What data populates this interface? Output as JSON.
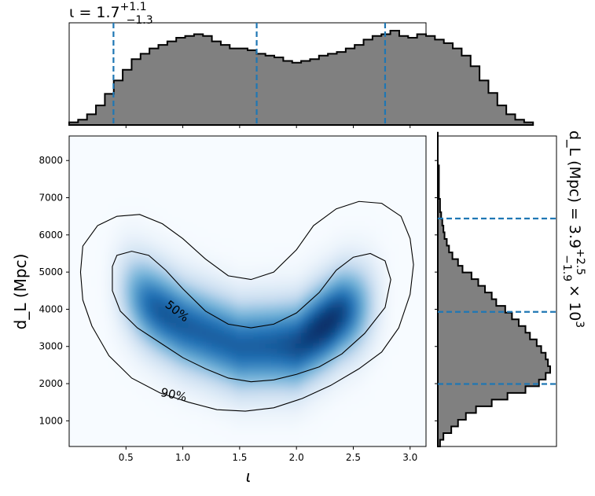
{
  "chart_data": {
    "type": "corner-plot",
    "parameters": [
      "iota",
      "d_L"
    ],
    "top_marginal": {
      "type": "histogram",
      "parameter": "iota",
      "header": {
        "prefix": "ι = 1.7",
        "plus": "+1.1",
        "minus": "−1.3"
      },
      "xlim": [
        0.0,
        3.14
      ],
      "bin_edges_start": 0.0,
      "bin_width": 0.0785,
      "counts": [
        0.03,
        0.06,
        0.12,
        0.22,
        0.35,
        0.5,
        0.62,
        0.74,
        0.8,
        0.86,
        0.9,
        0.94,
        0.98,
        1.0,
        1.02,
        1.0,
        0.94,
        0.9,
        0.86,
        0.86,
        0.84,
        0.8,
        0.78,
        0.76,
        0.72,
        0.7,
        0.72,
        0.74,
        0.78,
        0.8,
        0.82,
        0.86,
        0.9,
        0.96,
        1.0,
        1.02,
        1.06,
        1.0,
        0.98,
        1.02,
        1.0,
        0.96,
        0.92,
        0.86,
        0.78,
        0.66,
        0.5,
        0.36,
        0.22,
        0.12,
        0.06,
        0.03
      ],
      "quantile_lines": [
        0.39,
        1.65,
        2.78
      ]
    },
    "right_marginal": {
      "type": "histogram",
      "parameter": "d_L",
      "orientation": "horizontal",
      "header": {
        "prefix": "d_L (Mpc) = 3.9",
        "plus": "+2.5",
        "minus": "−1.9",
        "suffix": "× 10",
        "exponent": "3"
      },
      "ylim": [
        310,
        8660
      ],
      "bin_edges_start": 310,
      "bin_width": 180,
      "counts": [
        0.02,
        0.05,
        0.12,
        0.18,
        0.25,
        0.34,
        0.48,
        0.62,
        0.78,
        0.9,
        0.96,
        1.0,
        0.98,
        0.96,
        0.92,
        0.88,
        0.82,
        0.78,
        0.72,
        0.66,
        0.6,
        0.52,
        0.48,
        0.42,
        0.36,
        0.3,
        0.22,
        0.18,
        0.13,
        0.1,
        0.08,
        0.06,
        0.05,
        0.04,
        0.03,
        0.02,
        0.02,
        0.01,
        0.01,
        0.01,
        0.01,
        0.01,
        0.0,
        0.0,
        0.0,
        0.0,
        0.0
      ],
      "quantile_lines": [
        1990,
        3930,
        6440
      ]
    },
    "joint": {
      "type": "heatmap",
      "xlim": [
        0.0,
        3.14
      ],
      "ylim": [
        310,
        8660
      ],
      "xlabel_sym": "ι",
      "ylabel": "d_L (Mpc)",
      "xticks": [
        0.5,
        1.0,
        1.5,
        2.0,
        2.5,
        3.0
      ],
      "xtick_labels": [
        "0.5",
        "1.0",
        "1.5",
        "2.0",
        "2.5",
        "3.0"
      ],
      "yticks": [
        1000,
        2000,
        3000,
        4000,
        5000,
        6000,
        7000,
        8000
      ],
      "ytick_labels": [
        "1000",
        "2000",
        "3000",
        "4000",
        "5000",
        "6000",
        "7000",
        "8000"
      ],
      "colormap": [
        "#f7fbff",
        "#c6dbef",
        "#6baed6",
        "#2171b5",
        "#08306b"
      ],
      "contours": [
        {
          "label": "50%",
          "label_at": [
            0.95,
            3950
          ],
          "path": [
            [
              0.38,
              5150
            ],
            [
              0.42,
              5450
            ],
            [
              0.55,
              5560
            ],
            [
              0.7,
              5450
            ],
            [
              0.85,
              5050
            ],
            [
              1.0,
              4550
            ],
            [
              1.2,
              3950
            ],
            [
              1.4,
              3600
            ],
            [
              1.6,
              3500
            ],
            [
              1.8,
              3600
            ],
            [
              2.0,
              3900
            ],
            [
              2.2,
              4450
            ],
            [
              2.35,
              5050
            ],
            [
              2.5,
              5400
            ],
            [
              2.65,
              5500
            ],
            [
              2.78,
              5300
            ],
            [
              2.83,
              4800
            ],
            [
              2.78,
              4050
            ],
            [
              2.6,
              3350
            ],
            [
              2.4,
              2800
            ],
            [
              2.2,
              2450
            ],
            [
              2.0,
              2250
            ],
            [
              1.8,
              2100
            ],
            [
              1.6,
              2050
            ],
            [
              1.4,
              2150
            ],
            [
              1.2,
              2400
            ],
            [
              1.0,
              2700
            ],
            [
              0.8,
              3100
            ],
            [
              0.6,
              3500
            ],
            [
              0.45,
              3950
            ],
            [
              0.38,
              4500
            ],
            [
              0.38,
              5150
            ]
          ]
        },
        {
          "label": "90%",
          "label_at": [
            0.92,
            1700
          ],
          "path": [
            [
              0.1,
              5000
            ],
            [
              0.12,
              5700
            ],
            [
              0.25,
              6250
            ],
            [
              0.42,
              6500
            ],
            [
              0.62,
              6550
            ],
            [
              0.82,
              6300
            ],
            [
              1.0,
              5900
            ],
            [
              1.2,
              5350
            ],
            [
              1.4,
              4900
            ],
            [
              1.6,
              4800
            ],
            [
              1.8,
              5000
            ],
            [
              2.0,
              5600
            ],
            [
              2.15,
              6250
            ],
            [
              2.35,
              6700
            ],
            [
              2.55,
              6900
            ],
            [
              2.75,
              6850
            ],
            [
              2.92,
              6500
            ],
            [
              3.0,
              5900
            ],
            [
              3.03,
              5200
            ],
            [
              3.0,
              4400
            ],
            [
              2.9,
              3500
            ],
            [
              2.75,
              2850
            ],
            [
              2.55,
              2400
            ],
            [
              2.3,
              1950
            ],
            [
              2.05,
              1600
            ],
            [
              1.8,
              1350
            ],
            [
              1.55,
              1260
            ],
            [
              1.3,
              1300
            ],
            [
              1.05,
              1500
            ],
            [
              0.8,
              1750
            ],
            [
              0.55,
              2150
            ],
            [
              0.35,
              2750
            ],
            [
              0.2,
              3550
            ],
            [
              0.12,
              4250
            ],
            [
              0.1,
              5000
            ]
          ]
        }
      ]
    }
  }
}
